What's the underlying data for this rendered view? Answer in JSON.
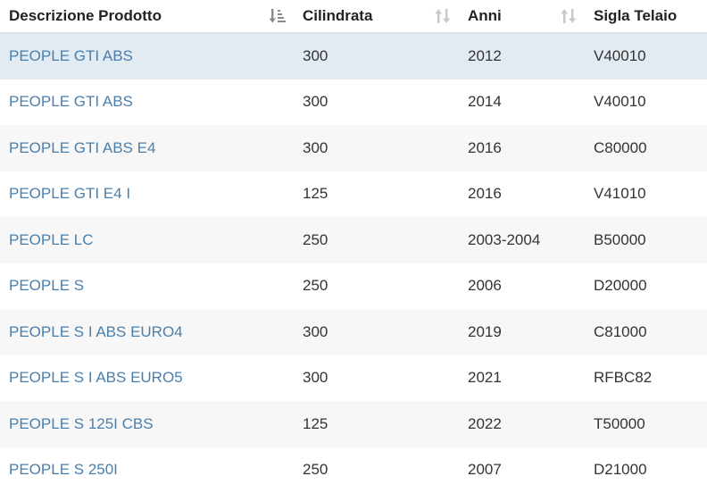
{
  "table": {
    "columns": [
      {
        "label": "Descrizione Prodotto",
        "sort": "descending-icon"
      },
      {
        "label": "Cilindrata",
        "sort": "sortable-icon"
      },
      {
        "label": "Anni",
        "sort": "sortable-icon"
      },
      {
        "label": "Sigla Telaio",
        "sort": "none"
      }
    ],
    "rows": [
      {
        "descrizione": "PEOPLE GTI ABS",
        "cilindrata": "300",
        "anni": "2012",
        "telaio": "V40010"
      },
      {
        "descrizione": "PEOPLE GTI ABS",
        "cilindrata": "300",
        "anni": "2014",
        "telaio": "V40010"
      },
      {
        "descrizione": "PEOPLE GTI ABS E4",
        "cilindrata": "300",
        "anni": "2016",
        "telaio": "C80000"
      },
      {
        "descrizione": "PEOPLE GTI E4 I",
        "cilindrata": "125",
        "anni": "2016",
        "telaio": "V41010"
      },
      {
        "descrizione": "PEOPLE LC",
        "cilindrata": "250",
        "anni": "2003-2004",
        "telaio": "B50000"
      },
      {
        "descrizione": "PEOPLE S",
        "cilindrata": "250",
        "anni": "2006",
        "telaio": "D20000"
      },
      {
        "descrizione": "PEOPLE S I ABS EURO4",
        "cilindrata": "300",
        "anni": "2019",
        "telaio": "C81000"
      },
      {
        "descrizione": "PEOPLE S I ABS EURO5",
        "cilindrata": "300",
        "anni": "2021",
        "telaio": "RFBC82"
      },
      {
        "descrizione": "PEOPLE S 125I CBS",
        "cilindrata": "125",
        "anni": "2022",
        "telaio": "T50000"
      },
      {
        "descrizione": "PEOPLE S 250I",
        "cilindrata": "250",
        "anni": "2007",
        "telaio": "D21000"
      }
    ]
  },
  "colors": {
    "link": "#4a7fac",
    "selected_row": "#e2eaf2",
    "striped_row": "#f7f7f7",
    "sort_icon_active": "#8a8a8a",
    "sort_icon_inactive": "#c8c8c8"
  }
}
